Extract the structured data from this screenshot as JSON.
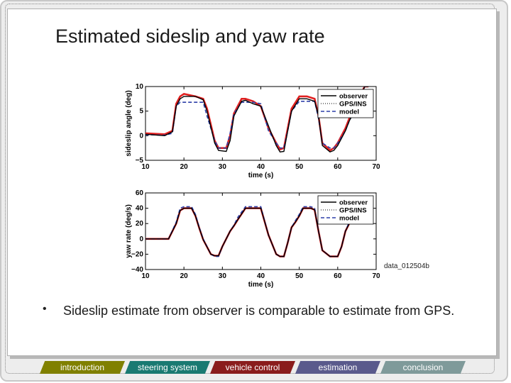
{
  "slide": {
    "title": "Estimated sideslip and yaw rate",
    "image_label": "data_012504b",
    "bullet": "Sideslip estimate from observer is comparable to estimate from GPS."
  },
  "nav": [
    {
      "label": "introduction",
      "color": "#808000"
    },
    {
      "label": "steering system",
      "color": "#1a7a72"
    },
    {
      "label": "vehicle control",
      "color": "#8a1c1c"
    },
    {
      "label": "estimation",
      "color": "#5a5a8c"
    },
    {
      "label": "conclusion",
      "color": "#7f9a9a"
    }
  ],
  "chart_data": [
    {
      "type": "line",
      "xlabel": "time (s)",
      "ylabel": "sideslip angle (deg)",
      "xlim": [
        10,
        70
      ],
      "ylim": [
        -5,
        10
      ],
      "xticks": [
        10,
        20,
        30,
        40,
        50,
        60,
        70
      ],
      "yticks": [
        -5,
        0,
        5,
        10
      ],
      "legend_position": "top-right",
      "series": [
        {
          "name": "observer",
          "color": "#000000",
          "style": "solid",
          "x": [
            10,
            15,
            17,
            18,
            19,
            20,
            23,
            25,
            26,
            28,
            29,
            31,
            32,
            33,
            35,
            36,
            38,
            40,
            42,
            44,
            45,
            46,
            47,
            48,
            50,
            52,
            54,
            55,
            56,
            58,
            59,
            60,
            62,
            63,
            64,
            65,
            66,
            67,
            68
          ],
          "y": [
            0.3,
            0,
            0.8,
            6,
            7.5,
            8,
            8,
            7.3,
            5,
            -1.5,
            -3,
            -3.2,
            -1,
            4,
            7,
            7.2,
            6.5,
            6,
            2,
            -2,
            -3.3,
            -3.2,
            1,
            5,
            7.5,
            7.5,
            7,
            4,
            -2,
            -3.3,
            -3,
            -2,
            1,
            3,
            4.5,
            6,
            8,
            10,
            10
          ]
        },
        {
          "name": "GPS/INS",
          "color": "#e02020",
          "style": "dotted",
          "x": [
            10,
            15,
            17,
            18,
            19,
            20,
            23,
            25,
            26,
            28,
            29,
            31,
            32,
            33,
            35,
            36,
            38,
            40,
            42,
            44,
            45,
            46,
            47,
            48,
            50,
            52,
            54,
            55,
            56,
            58,
            59,
            60,
            62,
            63,
            64,
            65,
            66,
            67,
            68
          ],
          "y": [
            0.5,
            0.3,
            1,
            6.5,
            8,
            8.5,
            8,
            7.5,
            5.5,
            -1,
            -2.5,
            -2.5,
            0,
            4.5,
            7.5,
            7.5,
            7,
            6,
            1.5,
            -1.5,
            -2.8,
            -2.5,
            1.5,
            5.5,
            8,
            8,
            7.5,
            4,
            -1.5,
            -3,
            -2.5,
            -1.5,
            1.5,
            3.5,
            5,
            6.5,
            8.5,
            10,
            10
          ]
        },
        {
          "name": "model",
          "color": "#2d3fa8",
          "style": "dashed",
          "x": [
            10,
            15,
            17,
            18,
            19,
            20,
            23,
            25,
            26,
            28,
            29,
            31,
            32,
            33,
            35,
            36,
            38,
            40,
            42,
            44,
            45,
            46,
            47,
            48,
            50,
            52,
            54,
            55,
            56,
            58,
            59,
            60,
            62,
            63,
            64,
            65,
            66,
            67,
            68
          ],
          "y": [
            0.2,
            0.1,
            0.5,
            6,
            6.8,
            6.8,
            6.8,
            6.8,
            4,
            -1,
            -2.5,
            -2.5,
            0.5,
            4.5,
            6.8,
            6.8,
            6.8,
            6.5,
            1,
            -1.5,
            -2.5,
            -2.5,
            1,
            5,
            7,
            7,
            7,
            3.5,
            -1.5,
            -2.5,
            -2.5,
            -1.5,
            1,
            3,
            4.5,
            6,
            8,
            10,
            10
          ]
        }
      ]
    },
    {
      "type": "line",
      "xlabel": "time (s)",
      "ylabel": "yaw rate (deg/s)",
      "xlim": [
        10,
        70
      ],
      "ylim": [
        -40,
        60
      ],
      "xticks": [
        10,
        20,
        30,
        40,
        50,
        60,
        70
      ],
      "yticks": [
        -40,
        -20,
        0,
        20,
        40,
        60
      ],
      "legend_position": "top-right",
      "series": [
        {
          "name": "observer",
          "color": "#000000",
          "style": "solid",
          "x": [
            10,
            15,
            16,
            18,
            19,
            20,
            22,
            23,
            24,
            25,
            27,
            28,
            29,
            30,
            32,
            33,
            34,
            36,
            38,
            40,
            42,
            44,
            45,
            46,
            47,
            48,
            49,
            50,
            51,
            52,
            53,
            54,
            55,
            56,
            58,
            60,
            61,
            62,
            63,
            64,
            65,
            66
          ],
          "y": [
            0,
            0,
            0,
            20,
            37,
            40,
            40,
            30,
            14,
            -1,
            -20,
            -22,
            -22,
            -10,
            10,
            17,
            25,
            40,
            40,
            40,
            5,
            -20,
            -23,
            -23,
            -5,
            15,
            22,
            30,
            40,
            40,
            40,
            38,
            10,
            -15,
            -23,
            -23,
            -10,
            10,
            20,
            30,
            40,
            40
          ]
        },
        {
          "name": "GPS/INS",
          "color": "#e02020",
          "style": "dotted",
          "x": [
            10,
            15,
            16,
            18,
            19,
            20,
            22,
            23,
            24,
            25,
            27,
            28,
            29,
            30,
            32,
            33,
            34,
            36,
            38,
            40,
            42,
            44,
            45,
            46,
            47,
            48,
            49,
            50,
            51,
            52,
            53,
            54,
            55,
            56,
            58,
            60,
            61,
            62,
            63,
            64,
            65,
            66
          ],
          "y": [
            0,
            0,
            0,
            20,
            37,
            40,
            40,
            30,
            14,
            -1,
            -20,
            -22,
            -22,
            -10,
            10,
            17,
            25,
            40,
            40,
            40,
            5,
            -20,
            -23,
            -23,
            -5,
            15,
            22,
            30,
            40,
            40,
            40,
            38,
            10,
            -15,
            -23,
            -23,
            -10,
            10,
            20,
            30,
            40,
            40
          ]
        },
        {
          "name": "model",
          "color": "#2d3fa8",
          "style": "dashed",
          "x": [
            10,
            15,
            16,
            18,
            19,
            20,
            22,
            23,
            24,
            25,
            27,
            28,
            29,
            30,
            32,
            33,
            34,
            36,
            38,
            40,
            42,
            44,
            45,
            46,
            47,
            48,
            49,
            50,
            51,
            52,
            53,
            54,
            55,
            56,
            58,
            60,
            61,
            62,
            63,
            64,
            65,
            66
          ],
          "y": [
            0,
            0,
            0,
            22,
            40,
            42,
            42,
            32,
            15,
            0,
            -20,
            -23,
            -23,
            -10,
            10,
            18,
            28,
            42,
            42,
            42,
            5,
            -20,
            -23,
            -23,
            -5,
            15,
            24,
            32,
            42,
            42,
            42,
            40,
            10,
            -15,
            -23,
            -23,
            -10,
            10,
            22,
            32,
            42,
            42
          ]
        }
      ]
    }
  ]
}
